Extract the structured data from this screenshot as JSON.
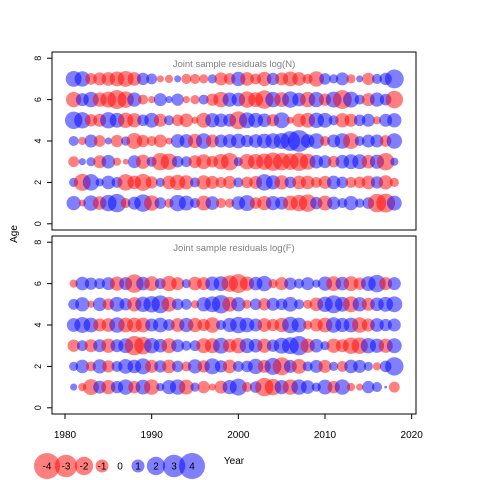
{
  "chart_data": {
    "type": "scatter",
    "ylabel": "Age",
    "xlabel": "Year",
    "x_ticks": [
      1980,
      1990,
      2000,
      2010,
      2020
    ],
    "y_ticks": [
      0,
      2,
      4,
      6,
      8
    ],
    "xlim": [
      1978.5,
      2020.5
    ],
    "ylim": [
      -0.3,
      8.3
    ],
    "colors": {
      "positive": "#0000ff",
      "negative": "#ff0000"
    },
    "panels": [
      {
        "title": "Joint sample residuals log(N)",
        "ages": [
          1,
          2,
          3,
          4,
          5,
          6,
          7
        ],
        "years": [
          1981,
          2018
        ],
        "residuals_by_age": {
          "1": [
            1.2,
            -0.3,
            1.4,
            -1.1,
            1.6,
            2.0,
            -0.6,
            1.0,
            1.8,
            -1.4,
            0.8,
            -0.5,
            1.6,
            1.3,
            0.6,
            -1.3,
            1.1,
            -0.6,
            -0.5,
            1.1,
            1.5,
            -0.8,
            -1.2,
            1.2,
            1.0,
            -1.3,
            -1.6,
            -1.8,
            0.9,
            -1.3,
            1.0,
            0.6,
            1.2,
            0.5,
            0.8,
            -2.0,
            -2.1,
            1.3
          ],
          "2": [
            0.5,
            -1.7,
            1.6,
            0.4,
            1.1,
            0.7,
            -1.6,
            -1.1,
            -1.7,
            -0.9,
            0.5,
            -1.1,
            -1.4,
            -1.2,
            0.6,
            -1.2,
            -1.0,
            -0.7,
            -1.0,
            0.6,
            -0.8,
            -1.0,
            1.6,
            1.2,
            -1.2,
            0.8,
            -1.1,
            -1.1,
            -0.7,
            -1.0,
            1.1,
            0.8,
            -0.7,
            -0.8,
            -1.1,
            0.9,
            -1.2,
            -0.5
          ],
          "3": [
            -0.7,
            0.3,
            0.5,
            -1.0,
            1.1,
            -0.4,
            -0.2,
            1.0,
            -1.2,
            0.6,
            -1.8,
            -1.6,
            0.8,
            0.7,
            -1.0,
            -1.3,
            -0.8,
            -1.4,
            -1.8,
            0.5,
            -1.4,
            -1.4,
            -1.6,
            -2.0,
            -1.8,
            -1.6,
            -2.0,
            -1.5,
            1.1,
            1.0,
            -0.8,
            1.1,
            1.3,
            1.3,
            -1.1,
            1.2,
            -1.8,
            0.4
          ],
          "4": [
            0.6,
            -0.4,
            1.0,
            -0.8,
            0.3,
            -0.9,
            0.5,
            -1.5,
            -0.9,
            -0.6,
            -1.0,
            -0.3,
            1.1,
            1.1,
            -1.2,
            1.4,
            -1.0,
            1.0,
            1.1,
            1.3,
            0.9,
            1.1,
            1.3,
            1.4,
            1.5,
            2.3,
            2.8,
            1.1,
            1.4,
            -0.6,
            1.0,
            1.4,
            -1.5,
            0.6,
            1.0,
            1.0,
            -0.8,
            1.4
          ],
          "5": [
            1.8,
            1.6,
            -0.9,
            -1.0,
            1.6,
            1.3,
            -1.4,
            -1.2,
            0.8,
            1.3,
            -1.0,
            0.6,
            -0.8,
            -1.1,
            -0.3,
            -1.3,
            1.2,
            1.1,
            1.0,
            -1.9,
            1.5,
            1.3,
            1.1,
            -0.9,
            1.5,
            -0.3,
            -1.1,
            -1.3,
            1.4,
            1.3,
            0.6,
            -1.2,
            -1.0,
            0.8,
            1.0,
            -0.4,
            1.0,
            1.2
          ],
          "6": [
            -1.4,
            1.0,
            1.4,
            -1.2,
            -1.5,
            -2.1,
            -1.6,
            1.2,
            -0.6,
            -0.3,
            1.0,
            0.3,
            0.9,
            -0.3,
            -0.5,
            0.6,
            -0.9,
            -1.4,
            1.2,
            1.1,
            -1.6,
            -1.3,
            -2.0,
            1.4,
            -1.3,
            1.6,
            1.1,
            -1.4,
            1.4,
            -0.9,
            1.5,
            -2.1,
            1.5,
            0.6,
            -1.0,
            1.2,
            0.8,
            -1.8
          ],
          "7": [
            1.5,
            1.4,
            -0.8,
            -1.0,
            -1.1,
            -1.3,
            -1.5,
            -1.1,
            0.9,
            0.7,
            -0.3,
            -0.4,
            0.3,
            -0.6,
            -0.6,
            -0.5,
            0.5,
            -1.0,
            -0.8,
            1.2,
            -1.1,
            -0.7,
            -1.2,
            0.9,
            -1.0,
            -1.3,
            -1.1,
            -0.6,
            -1.4,
            0.8,
            0.5,
            1.0,
            -0.5,
            0.3,
            -0.9,
            0.6,
            0.9,
            2.1
          ]
        }
      },
      {
        "title": "Joint sample residuals log(F)",
        "ages": [
          1,
          2,
          3,
          4,
          5,
          6
        ],
        "years": [
          1981,
          2018
        ],
        "residuals_by_age": {
          "1": [
            0.3,
            -0.4,
            -1.5,
            1.0,
            -1.2,
            0.9,
            1.4,
            -0.9,
            1.3,
            -1.4,
            0.4,
            1.2,
            1.4,
            -1.3,
            0.5,
            -0.9,
            -0.3,
            -1.0,
            1.2,
            1.7,
            -0.6,
            0.8,
            -2.0,
            -1.6,
            1.2,
            -1.4,
            1.4,
            1.1,
            0.5,
            1.3,
            -0.9,
            1.4,
            -0.4,
            -0.3,
            0.9,
            0.6,
            0.0,
            -0.7
          ],
          "2": [
            0.5,
            1.1,
            -0.6,
            1.2,
            -0.9,
            0.7,
            1.3,
            1.1,
            1.5,
            -1.0,
            0.9,
            -1.1,
            0.8,
            -0.6,
            1.2,
            -0.9,
            1.5,
            0.9,
            -1.1,
            0.7,
            0.8,
            1.4,
            -1.0,
            1.7,
            -1.9,
            1.0,
            -1.3,
            0.6,
            1.0,
            -1.0,
            0.5,
            -0.7,
            1.1,
            1.0,
            0.5,
            -0.4,
            0.8,
            2.0
          ],
          "3": [
            -0.9,
            0.7,
            -1.0,
            1.0,
            -1.2,
            1.0,
            1.3,
            -2.2,
            -1.8,
            1.4,
            1.1,
            -1.3,
            1.0,
            0.6,
            0.7,
            -1.3,
            -1.3,
            1.5,
            -1.1,
            -1.4,
            1.3,
            1.1,
            -1.2,
            0.9,
            1.5,
            1.7,
            2.2,
            -1.2,
            1.1,
            0.5,
            -1.2,
            -1.0,
            -1.6,
            -1.6,
            1.4,
            1.2,
            -1.2,
            1.3
          ],
          "4": [
            1.1,
            1.5,
            1.3,
            -1.0,
            -1.1,
            1.4,
            -1.3,
            -1.3,
            -1.3,
            1.0,
            1.3,
            0.8,
            -1.1,
            1.2,
            -1.2,
            -0.9,
            -1.4,
            0.6,
            1.2,
            1.6,
            1.3,
            1.0,
            -1.1,
            -0.9,
            -1.2,
            1.6,
            1.3,
            -0.5,
            -1.0,
            -1.3,
            1.4,
            1.2,
            1.3,
            -1.4,
            -1.0,
            1.1,
            0.9,
            1.0
          ],
          "5": [
            0.7,
            1.2,
            -0.3,
            1.1,
            -0.8,
            1.3,
            0.9,
            -1.2,
            1.4,
            1.6,
            1.9,
            -1.3,
            0.8,
            0.7,
            -0.4,
            1.2,
            1.5,
            2.0,
            -1.3,
            1.2,
            -0.5,
            0.8,
            -0.9,
            1.0,
            0.8,
            1.3,
            0.6,
            -0.5,
            -1.1,
            1.4,
            1.9,
            1.3,
            -1.5,
            1.2,
            -1.0,
            1.1,
            1.3,
            1.5
          ],
          "6": [
            -0.4,
            1.1,
            0.9,
            0.7,
            1.0,
            -1.2,
            1.0,
            -2.0,
            1.1,
            -1.3,
            0.7,
            -1.4,
            -1.0,
            0.5,
            -1.1,
            -1.0,
            1.2,
            1.3,
            -1.6,
            -2.1,
            -1.2,
            1.1,
            1.4,
            -0.5,
            -1.0,
            0.9,
            0.6,
            1.0,
            0.4,
            1.2,
            -1.3,
            1.1,
            -1.3,
            -0.9,
            1.3,
            1.8,
            -1.0,
            1.0
          ]
        }
      }
    ],
    "legend": {
      "position": "bottom-left",
      "values": [
        -4,
        -3,
        -2,
        -1,
        0,
        1,
        2,
        3,
        4
      ]
    }
  }
}
